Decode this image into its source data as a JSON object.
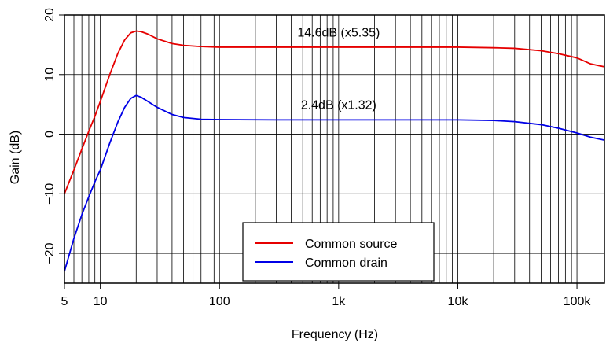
{
  "chart_data": {
    "type": "line",
    "xlabel": "Frequency (Hz)",
    "ylabel": "Gain (dB)",
    "x_scale": "log",
    "xlim": [
      5,
      170000
    ],
    "ylim": [
      -25,
      20
    ],
    "grid": true,
    "x_ticks": [
      {
        "value": 5,
        "label": "5"
      },
      {
        "value": 10,
        "label": "10"
      },
      {
        "value": 100,
        "label": "100"
      },
      {
        "value": 1000,
        "label": "1k"
      },
      {
        "value": 10000,
        "label": "10k"
      },
      {
        "value": 100000,
        "label": "100k"
      }
    ],
    "y_ticks": [
      {
        "value": -20,
        "label": "−20"
      },
      {
        "value": -10,
        "label": "−10"
      },
      {
        "value": 0,
        "label": "0"
      },
      {
        "value": 10,
        "label": "10"
      },
      {
        "value": 20,
        "label": "20"
      }
    ],
    "legend_position": "bottom-center",
    "series": [
      {
        "name": "Common source",
        "color": "#e60000",
        "points": [
          [
            5,
            -10
          ],
          [
            6,
            -6
          ],
          [
            7,
            -2.5
          ],
          [
            8,
            0.5
          ],
          [
            9,
            3
          ],
          [
            10,
            5.5
          ],
          [
            12,
            10
          ],
          [
            14,
            13.5
          ],
          [
            16,
            15.8
          ],
          [
            18,
            17.0
          ],
          [
            20,
            17.3
          ],
          [
            22,
            17.2
          ],
          [
            25,
            16.8
          ],
          [
            30,
            16.0
          ],
          [
            40,
            15.2
          ],
          [
            50,
            14.9
          ],
          [
            70,
            14.7
          ],
          [
            100,
            14.6
          ],
          [
            300,
            14.6
          ],
          [
            1000,
            14.6
          ],
          [
            3000,
            14.6
          ],
          [
            10000,
            14.6
          ],
          [
            20000,
            14.5
          ],
          [
            30000,
            14.4
          ],
          [
            50000,
            14.0
          ],
          [
            70000,
            13.5
          ],
          [
            100000,
            12.8
          ],
          [
            130000,
            11.8
          ],
          [
            170000,
            11.3
          ]
        ]
      },
      {
        "name": "Common drain",
        "color": "#0000e6",
        "points": [
          [
            5,
            -23
          ],
          [
            6,
            -17.5
          ],
          [
            7,
            -13.5
          ],
          [
            8,
            -10.5
          ],
          [
            9,
            -8
          ],
          [
            10,
            -6
          ],
          [
            12,
            -1.5
          ],
          [
            14,
            2.0
          ],
          [
            16,
            4.5
          ],
          [
            18,
            6.0
          ],
          [
            20,
            6.5
          ],
          [
            22,
            6.2
          ],
          [
            25,
            5.5
          ],
          [
            30,
            4.5
          ],
          [
            40,
            3.3
          ],
          [
            50,
            2.8
          ],
          [
            70,
            2.5
          ],
          [
            100,
            2.45
          ],
          [
            300,
            2.4
          ],
          [
            1000,
            2.4
          ],
          [
            3000,
            2.4
          ],
          [
            10000,
            2.4
          ],
          [
            20000,
            2.3
          ],
          [
            30000,
            2.1
          ],
          [
            50000,
            1.6
          ],
          [
            70000,
            1.0
          ],
          [
            100000,
            0.2
          ],
          [
            130000,
            -0.5
          ],
          [
            170000,
            -1.0
          ]
        ]
      }
    ],
    "annotations": [
      {
        "text": "14.6dB (x5.35)",
        "x": 1000,
        "y": 16.4
      },
      {
        "text": "2.4dB (x1.32)",
        "x": 1000,
        "y": 4.2
      }
    ]
  }
}
